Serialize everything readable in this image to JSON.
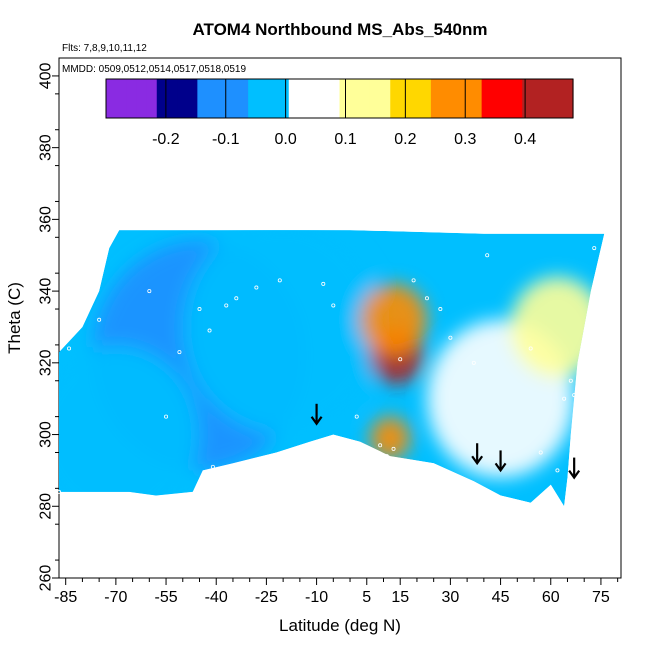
{
  "chart_data": {
    "type": "heatmap",
    "title": "ATOM4 Northbound MS_Abs_540nm",
    "flights_note": "Flts: 7,8,9,10,11,12",
    "dates_note": "MMDD: 0509,0512,0514,0517,0518,0519",
    "xlabel": "Latitude (deg N)",
    "ylabel": "Theta (C)",
    "xlim": [
      -87,
      81
    ],
    "ylim": [
      260,
      405
    ],
    "xticks": [
      "-85",
      "-70",
      "-55",
      "-40",
      "-25",
      "-10",
      "5",
      "15",
      "30",
      "45",
      "60",
      "75"
    ],
    "yticks": [
      "260",
      "280",
      "300",
      "320",
      "340",
      "360",
      "380",
      "400"
    ],
    "colorbar": {
      "range": [
        -0.3,
        0.48
      ],
      "ticks": [
        "-0.2",
        "-0.1",
        "0.0",
        "0.1",
        "0.2",
        "0.3",
        "0.4"
      ],
      "colors": [
        "#8a2be2",
        "#00008b",
        "#1e90ff",
        "#00bfff",
        "#ffffff",
        "#ffff99",
        "#ffd700",
        "#ff8c00",
        "#ff0000",
        "#b22222"
      ]
    },
    "field_region": {
      "top_edge": [
        [
          -87,
          323
        ],
        [
          -80,
          330
        ],
        [
          -75,
          340
        ],
        [
          -72,
          352
        ],
        [
          -69,
          357
        ],
        [
          -40,
          357
        ],
        [
          0,
          357
        ],
        [
          40,
          356
        ],
        [
          76,
          356
        ]
      ],
      "bottom_edge": [
        [
          76,
          356
        ],
        [
          72,
          340
        ],
        [
          68,
          320
        ],
        [
          66,
          300
        ],
        [
          65,
          288
        ],
        [
          64,
          280
        ],
        [
          60,
          286
        ],
        [
          54,
          281
        ],
        [
          45,
          283
        ],
        [
          37,
          287
        ],
        [
          25,
          292
        ],
        [
          12,
          294
        ],
        [
          3,
          298
        ],
        [
          -5,
          300
        ],
        [
          -12,
          298
        ],
        [
          -22,
          295
        ],
        [
          -35,
          292
        ],
        [
          -44,
          290
        ],
        [
          -47,
          284
        ],
        [
          -58,
          283
        ],
        [
          -66,
          284
        ],
        [
          -87,
          284
        ]
      ]
    },
    "background_value": 0.0,
    "features": [
      {
        "lat": -45,
        "theta": 322,
        "value": -0.1,
        "radius": 32
      },
      {
        "lat": -20,
        "theta": 330,
        "value": -0.05,
        "radius": 30
      },
      {
        "lat": -70,
        "theta": 300,
        "value": -0.02,
        "radius": 25
      },
      {
        "lat": 14,
        "theta": 322,
        "value": 0.45,
        "radius": 8
      },
      {
        "lat": 13,
        "theta": 332,
        "value": 0.3,
        "radius": 10
      },
      {
        "lat": 12,
        "theta": 299,
        "value": 0.26,
        "radius": 6
      },
      {
        "lat": 45,
        "theta": 310,
        "value": 0.07,
        "radius": 22
      },
      {
        "lat": 62,
        "theta": 330,
        "value": 0.09,
        "radius": 14
      }
    ],
    "sample_points": [
      [
        -87,
        284
      ],
      [
        -84,
        324
      ],
      [
        -75,
        332
      ],
      [
        -60,
        340
      ],
      [
        -45,
        335
      ],
      [
        -42,
        329
      ],
      [
        -37,
        336
      ],
      [
        -34,
        338
      ],
      [
        -28,
        341
      ],
      [
        -21,
        343
      ],
      [
        -8,
        342
      ],
      [
        -5,
        336
      ],
      [
        -51,
        323
      ],
      [
        -55,
        305
      ],
      [
        -41,
        291
      ],
      [
        2,
        305
      ],
      [
        9,
        297
      ],
      [
        11,
        294
      ],
      [
        13,
        296
      ],
      [
        15,
        321
      ],
      [
        19,
        343
      ],
      [
        23,
        338
      ],
      [
        27,
        335
      ],
      [
        30,
        327
      ],
      [
        37,
        320
      ],
      [
        41,
        350
      ],
      [
        54,
        324
      ],
      [
        57,
        295
      ],
      [
        62,
        290
      ],
      [
        64,
        310
      ],
      [
        66,
        315
      ],
      [
        67,
        311
      ],
      [
        70,
        323
      ],
      [
        73,
        352
      ]
    ],
    "arrows": [
      {
        "lat": -10,
        "theta": 303
      },
      {
        "lat": 38,
        "theta": 292
      },
      {
        "lat": 45,
        "theta": 290
      },
      {
        "lat": 67,
        "theta": 288
      }
    ]
  }
}
